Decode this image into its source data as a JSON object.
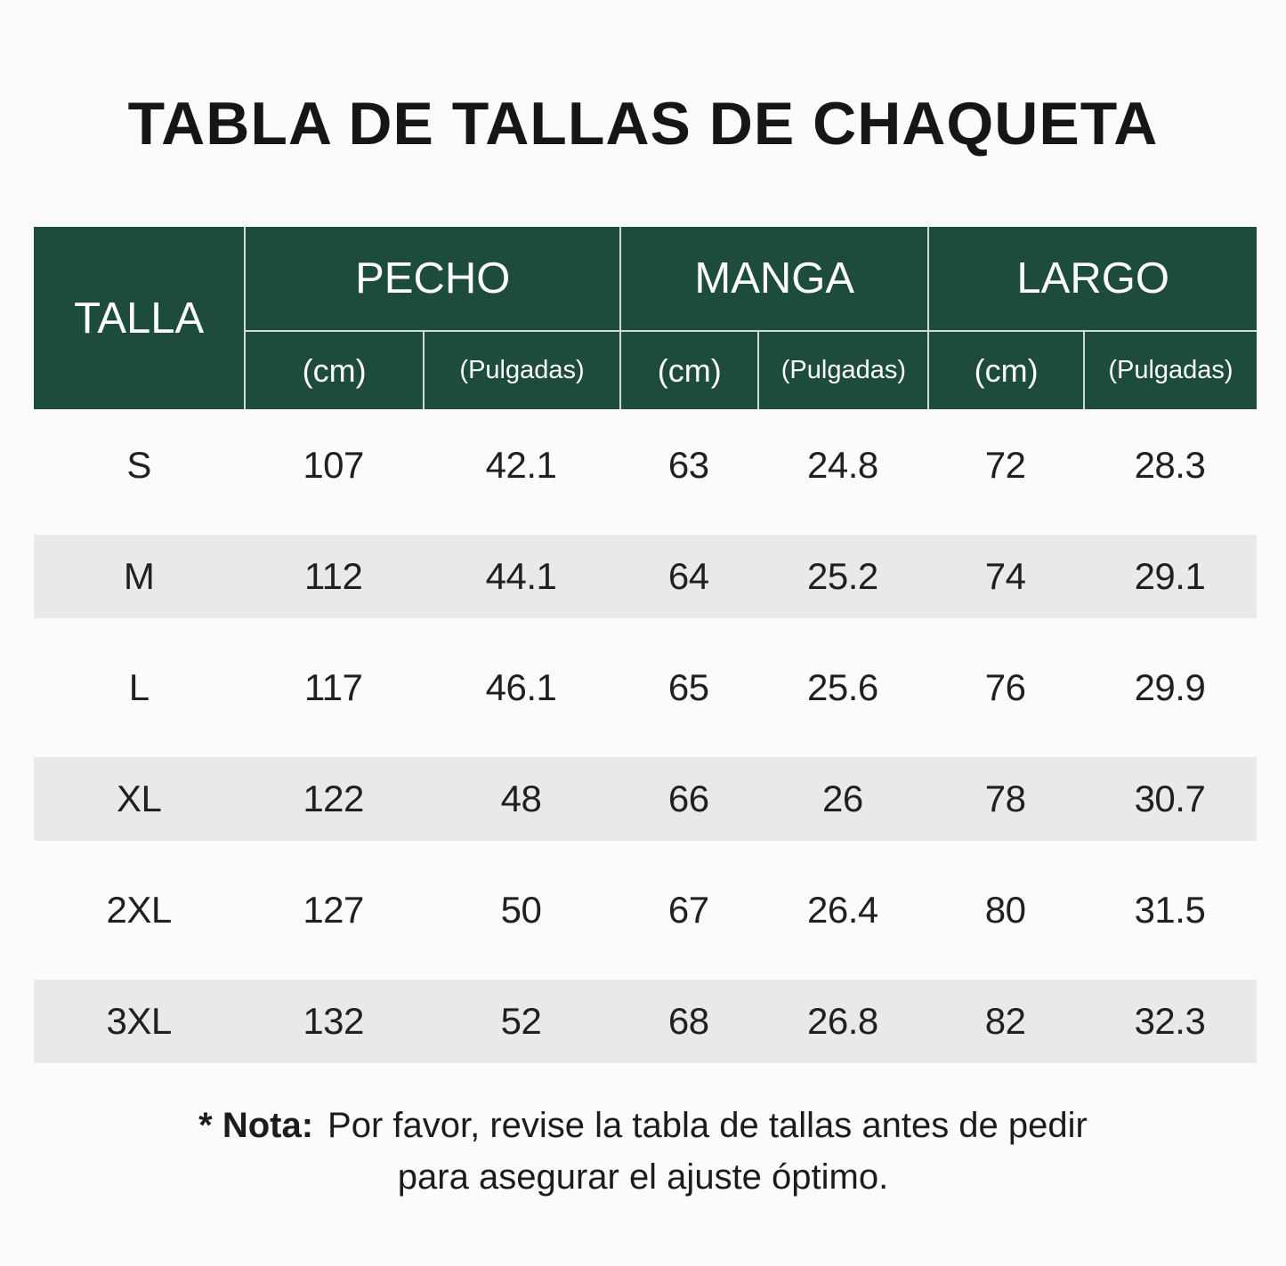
{
  "page": {
    "background": "#fbfbfa"
  },
  "title": "TABLA DE TALLAS DE CHAQUETA",
  "table": {
    "colors": {
      "header_bg": "#1d4c3c",
      "header_text": "#ffffff",
      "gridline": "#ccdcd4",
      "stripe": "#e9e9e9",
      "text": "#202020"
    },
    "header": {
      "size_label": "TALLA",
      "groups": [
        {
          "label": "PECHO",
          "sub": [
            "(cm)",
            "(Pulgadas)"
          ]
        },
        {
          "label": "MANGA",
          "sub": [
            "(cm)",
            "(Pulgadas)"
          ]
        },
        {
          "label": "LARGO",
          "sub": [
            "(cm)",
            "(Pulgadas)"
          ]
        }
      ]
    },
    "rows": [
      {
        "size": "S",
        "values": [
          "107",
          "42.1",
          "63",
          "24.8",
          "72",
          "28.3"
        ],
        "striped": false
      },
      {
        "size": "M",
        "values": [
          "112",
          "44.1",
          "64",
          "25.2",
          "74",
          "29.1"
        ],
        "striped": true
      },
      {
        "size": "L",
        "values": [
          "117",
          "46.1",
          "65",
          "25.6",
          "76",
          "29.9"
        ],
        "striped": false
      },
      {
        "size": "XL",
        "values": [
          "122",
          "48",
          "66",
          "26",
          "78",
          "30.7"
        ],
        "striped": true
      },
      {
        "size": "2XL",
        "values": [
          "127",
          "50",
          "67",
          "26.4",
          "80",
          "31.5"
        ],
        "striped": false
      },
      {
        "size": "3XL",
        "values": [
          "132",
          "52",
          "68",
          "26.8",
          "82",
          "32.3"
        ],
        "striped": true
      }
    ]
  },
  "note": {
    "prefix": "* Nota:",
    "line1": "Por favor, revise la tabla de tallas antes de pedir",
    "line2": "para asegurar el ajuste óptimo."
  },
  "chart_data": {
    "type": "table",
    "title": "TABLA DE TALLAS DE CHAQUETA",
    "columns": [
      "TALLA",
      "PECHO (cm)",
      "PECHO (Pulgadas)",
      "MANGA (cm)",
      "MANGA (Pulgadas)",
      "LARGO (cm)",
      "LARGO (Pulgadas)"
    ],
    "rows": [
      [
        "S",
        107,
        42.1,
        63,
        24.8,
        72,
        28.3
      ],
      [
        "M",
        112,
        44.1,
        64,
        25.2,
        74,
        29.1
      ],
      [
        "L",
        117,
        46.1,
        65,
        25.6,
        76,
        29.9
      ],
      [
        "XL",
        122,
        48,
        66,
        26,
        78,
        30.7
      ],
      [
        "2XL",
        127,
        50,
        67,
        26.4,
        80,
        31.5
      ],
      [
        "3XL",
        132,
        52,
        68,
        26.8,
        82,
        32.3
      ]
    ],
    "note": "* Nota: Por favor, revise la tabla de tallas antes de pedir para asegurar el ajuste óptimo."
  }
}
